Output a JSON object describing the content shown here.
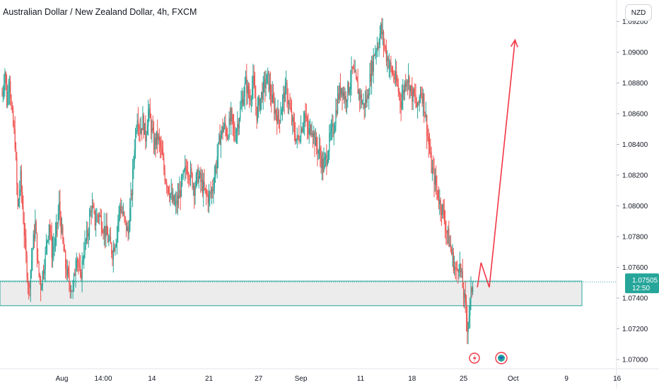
{
  "header": {
    "title": "Australian Dollar / New Zealand Dollar, 4h, FXCM",
    "currency": "NZD"
  },
  "colors": {
    "up": "#26a69a",
    "down": "#ef5350",
    "drawing": "#f23645",
    "zone_border": "#26a69a",
    "zone_fill": "#e6e6e6"
  },
  "chart_data": {
    "type": "candlestick",
    "symbol": "AUDNZD",
    "timeframe": "4h",
    "ylim": [
      1.0694,
      1.0934
    ],
    "yticks": [
      "1.09200",
      "1.09000",
      "1.08800",
      "1.08600",
      "1.08400",
      "1.08200",
      "1.08000",
      "1.07800",
      "1.07600",
      "1.07400",
      "1.07200",
      "1.07000"
    ],
    "ytick_values": [
      1.092,
      1.09,
      1.088,
      1.086,
      1.084,
      1.082,
      1.08,
      1.078,
      1.076,
      1.074,
      1.072,
      1.07
    ],
    "xticks": [
      "Aug",
      "14:00",
      "14",
      "21",
      "27",
      "Sep",
      "11",
      "18",
      "25",
      "Oct",
      "9",
      "16"
    ],
    "xtick_bars": [
      65,
      110,
      163,
      225,
      279,
      325,
      390,
      446,
      502,
      556,
      614,
      669
    ],
    "anchors": [
      [
        0,
        1.0872
      ],
      [
        3,
        1.0888
      ],
      [
        5,
        1.0868
      ],
      [
        8,
        1.0885
      ],
      [
        10,
        1.0862
      ],
      [
        14,
        1.0842
      ],
      [
        17,
        1.0798
      ],
      [
        20,
        1.0818
      ],
      [
        23,
        1.0792
      ],
      [
        26,
        1.0765
      ],
      [
        29,
        1.0745
      ],
      [
        33,
        1.0772
      ],
      [
        36,
        1.0788
      ],
      [
        39,
        1.076
      ],
      [
        42,
        1.0748
      ],
      [
        47,
        1.0768
      ],
      [
        51,
        1.079
      ],
      [
        54,
        1.077
      ],
      [
        58,
        1.0778
      ],
      [
        62,
        1.08
      ],
      [
        66,
        1.0775
      ],
      [
        69,
        1.076
      ],
      [
        73,
        1.075
      ],
      [
        77,
        1.0745
      ],
      [
        81,
        1.077
      ],
      [
        85,
        1.0752
      ],
      [
        89,
        1.0772
      ],
      [
        93,
        1.0782
      ],
      [
        97,
        1.08
      ],
      [
        101,
        1.079
      ],
      [
        105,
        1.0795
      ],
      [
        109,
        1.0788
      ],
      [
        113,
        1.0782
      ],
      [
        117,
        1.0775
      ],
      [
        120,
        1.077
      ],
      [
        124,
        1.078
      ],
      [
        128,
        1.08
      ],
      [
        131,
        1.0795
      ],
      [
        134,
        1.0788
      ],
      [
        137,
        1.0782
      ],
      [
        141,
        1.081
      ],
      [
        144,
        1.084
      ],
      [
        147,
        1.086
      ],
      [
        150,
        1.085
      ],
      [
        153,
        1.0855
      ],
      [
        156,
        1.0845
      ],
      [
        159,
        1.0862
      ],
      [
        162,
        1.0852
      ],
      [
        165,
        1.084
      ],
      [
        169,
        1.0845
      ],
      [
        173,
        1.0835
      ],
      [
        177,
        1.082
      ],
      [
        181,
        1.0812
      ],
      [
        185,
        1.0803
      ],
      [
        189,
        1.08
      ],
      [
        193,
        1.0808
      ],
      [
        197,
        1.0818
      ],
      [
        201,
        1.0826
      ],
      [
        205,
        1.082
      ],
      [
        209,
        1.0812
      ],
      [
        213,
        1.082
      ],
      [
        217,
        1.0814
      ],
      [
        221,
        1.0808
      ],
      [
        225,
        1.0805
      ],
      [
        229,
        1.0812
      ],
      [
        233,
        1.0828
      ],
      [
        237,
        1.0845
      ],
      [
        241,
        1.0852
      ],
      [
        245,
        1.0847
      ],
      [
        249,
        1.0858
      ],
      [
        253,
        1.0845
      ],
      [
        257,
        1.0856
      ],
      [
        261,
        1.0868
      ],
      [
        265,
        1.088
      ],
      [
        269,
        1.087
      ],
      [
        273,
        1.088
      ],
      [
        277,
        1.086
      ],
      [
        281,
        1.087
      ],
      [
        285,
        1.0878
      ],
      [
        289,
        1.0883
      ],
      [
        293,
        1.087
      ],
      [
        297,
        1.0862
      ],
      [
        301,
        1.0856
      ],
      [
        305,
        1.0868
      ],
      [
        309,
        1.0876
      ],
      [
        313,
        1.0862
      ],
      [
        317,
        1.085
      ],
      [
        321,
        1.0842
      ],
      [
        325,
        1.085
      ],
      [
        329,
        1.086
      ],
      [
        333,
        1.0847
      ],
      [
        337,
        1.0852
      ],
      [
        341,
        1.084
      ],
      [
        345,
        1.0835
      ],
      [
        349,
        1.0825
      ],
      [
        353,
        1.0832
      ],
      [
        357,
        1.0845
      ],
      [
        361,
        1.0852
      ],
      [
        365,
        1.087
      ],
      [
        369,
        1.0878
      ],
      [
        373,
        1.087
      ],
      [
        377,
        1.0877
      ],
      [
        381,
        1.0888
      ],
      [
        385,
        1.088
      ],
      [
        389,
        1.0872
      ],
      [
        393,
        1.0865
      ],
      [
        397,
        1.087
      ],
      [
        401,
        1.0886
      ],
      [
        405,
        1.09
      ],
      [
        409,
        1.0906
      ],
      [
        412,
        1.0915
      ],
      [
        415,
        1.0907
      ],
      [
        418,
        1.0898
      ],
      [
        421,
        1.0892
      ],
      [
        424,
        1.0887
      ],
      [
        428,
        1.0882
      ],
      [
        431,
        1.0875
      ],
      [
        434,
        1.0868
      ],
      [
        437,
        1.0876
      ],
      [
        440,
        1.0885
      ],
      [
        443,
        1.088
      ],
      [
        446,
        1.0872
      ],
      [
        449,
        1.087
      ],
      [
        452,
        1.0862
      ],
      [
        455,
        1.0876
      ],
      [
        458,
        1.087
      ],
      [
        461,
        1.0856
      ],
      [
        464,
        1.084
      ],
      [
        467,
        1.0825
      ],
      [
        470,
        1.0818
      ],
      [
        473,
        1.081
      ],
      [
        476,
        1.0802
      ],
      [
        479,
        1.0798
      ],
      [
        482,
        1.0788
      ],
      [
        485,
        1.078
      ],
      [
        488,
        1.0772
      ],
      [
        491,
        1.0763
      ],
      [
        494,
        1.0756
      ],
      [
        497,
        1.0764
      ],
      [
        500,
        1.0752
      ],
      [
        503,
        1.0738
      ],
      [
        506,
        1.0722
      ],
      [
        508,
        1.073
      ],
      [
        510,
        1.0742
      ],
      [
        512,
        1.0751
      ]
    ],
    "current_price": "1.07505",
    "countdown": "12:50",
    "support_zone": [
      1.0735,
      1.0751
    ],
    "projection": [
      [
        517,
        1.0747
      ],
      [
        521,
        1.0763
      ],
      [
        530,
        1.0747
      ],
      [
        558,
        1.0908
      ]
    ]
  }
}
